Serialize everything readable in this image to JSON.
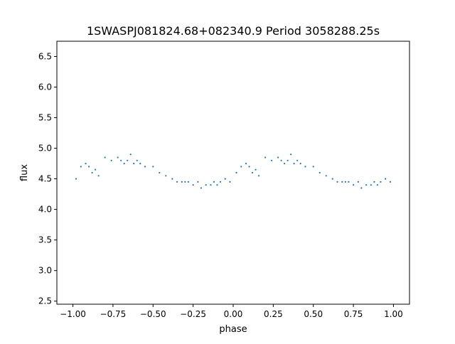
{
  "chart_data": {
    "type": "scatter",
    "title": "1SWASPJ081824.68+082340.9 Period 3058288.25s",
    "xlabel": "phase",
    "ylabel": "flux",
    "xlim": [
      -1.1,
      1.1
    ],
    "ylim": [
      2.45,
      6.75
    ],
    "xticks": [
      -1.0,
      -0.75,
      -0.5,
      -0.25,
      0.0,
      0.25,
      0.5,
      0.75,
      1.0
    ],
    "xtick_labels": [
      "−1.00",
      "−0.75",
      "−0.50",
      "−0.25",
      "0.00",
      "0.25",
      "0.50",
      "0.75",
      "1.00"
    ],
    "yticks": [
      2.5,
      3.0,
      3.5,
      4.0,
      4.5,
      5.0,
      5.5,
      6.0,
      6.5
    ],
    "ytick_labels": [
      "2.5",
      "3.0",
      "3.5",
      "4.0",
      "4.5",
      "5.0",
      "5.5",
      "6.0",
      "6.5"
    ],
    "grid": false,
    "marker_color": "#1f77b4",
    "series": [
      {
        "x": [
          -0.98,
          -0.95,
          -0.92,
          -0.9,
          -0.88,
          -0.86,
          -0.84,
          -0.8,
          -0.76,
          -0.72,
          -0.7,
          -0.68,
          -0.66,
          -0.64,
          -0.62,
          -0.6,
          -0.58,
          -0.55,
          -0.5,
          -0.46,
          -0.42,
          -0.38,
          -0.35,
          -0.32,
          -0.3,
          -0.28,
          -0.25,
          -0.22,
          -0.2,
          -0.17,
          -0.14,
          -0.12,
          -0.1,
          -0.08,
          -0.05,
          -0.02,
          0.02,
          0.05,
          0.08,
          0.1,
          0.12,
          0.14,
          0.16,
          0.2,
          0.24,
          0.28,
          0.3,
          0.32,
          0.34,
          0.36,
          0.38,
          0.4,
          0.42,
          0.45,
          0.5,
          0.54,
          0.58,
          0.62,
          0.65,
          0.68,
          0.7,
          0.72,
          0.75,
          0.78,
          0.8,
          0.83,
          0.86,
          0.88,
          0.9,
          0.92,
          0.95,
          0.98
        ],
        "y": [
          4.5,
          4.7,
          4.75,
          4.7,
          4.6,
          4.65,
          4.55,
          4.85,
          4.8,
          4.85,
          4.8,
          4.75,
          4.8,
          4.9,
          4.75,
          4.8,
          4.75,
          4.7,
          4.7,
          4.6,
          4.55,
          4.5,
          4.45,
          4.45,
          4.45,
          4.45,
          4.4,
          4.45,
          4.35,
          4.4,
          4.4,
          4.45,
          4.4,
          4.45,
          4.5,
          4.45,
          4.6,
          4.7,
          4.75,
          4.7,
          4.6,
          4.65,
          4.55,
          4.85,
          4.8,
          4.85,
          4.8,
          4.75,
          4.8,
          4.9,
          4.75,
          4.8,
          4.75,
          4.7,
          4.7,
          4.6,
          4.55,
          4.5,
          4.45,
          4.45,
          4.45,
          4.45,
          4.4,
          4.45,
          4.35,
          4.4,
          4.4,
          4.45,
          4.4,
          4.45,
          4.5,
          4.45
        ]
      }
    ]
  }
}
